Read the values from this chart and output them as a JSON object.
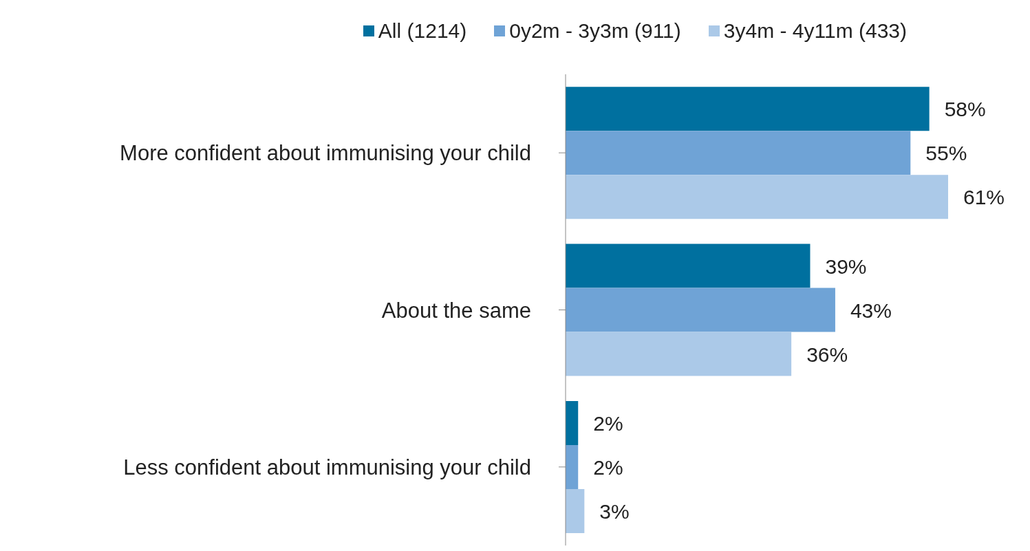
{
  "chart_data": {
    "type": "bar",
    "orientation": "horizontal",
    "categories": [
      "More confident about immunising your child",
      "About the same",
      "Less confident about immunising your child"
    ],
    "series": [
      {
        "name": "All (1214)",
        "color": "#00709f",
        "values": [
          58,
          39,
          2
        ],
        "value_labels": [
          "58%",
          "39%",
          "2%"
        ]
      },
      {
        "name": "0y2m - 3y3m (911)",
        "color": "#6fa3d6",
        "values": [
          55,
          43,
          2
        ],
        "value_labels": [
          "55%",
          "43%",
          "2%"
        ]
      },
      {
        "name": "3y4m - 4y11m (433)",
        "color": "#abc9e8",
        "values": [
          61,
          36,
          3
        ],
        "value_labels": [
          "61%",
          "36%",
          "3%"
        ]
      }
    ],
    "tick_labels": "y",
    "legend": "top"
  }
}
